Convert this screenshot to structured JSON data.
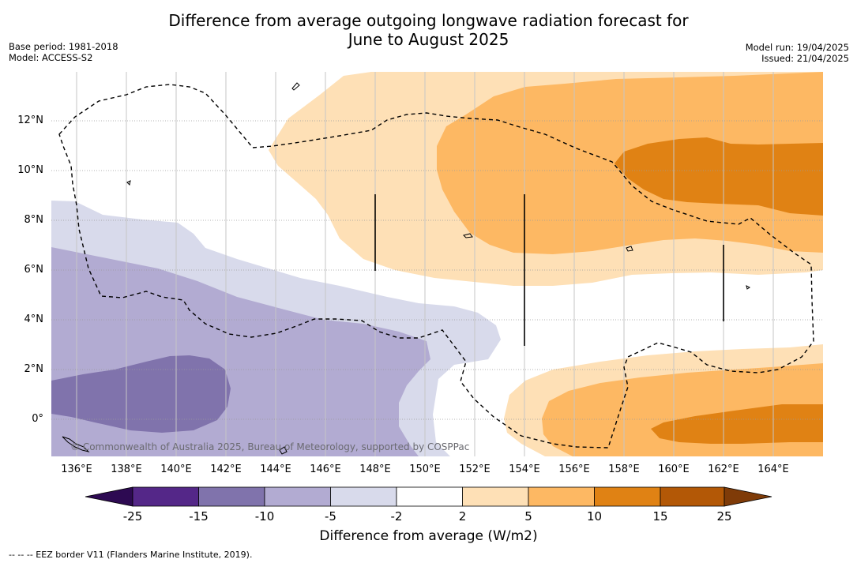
{
  "title": {
    "line1": "Difference from average outgoing longwave radiation forecast for",
    "line2": "June to August 2025"
  },
  "meta": {
    "base_period": "Base period: 1981-2018",
    "model": "Model: ACCESS-S2",
    "model_run": "Model run: 19/04/2025",
    "issued": "Issued: 21/04/2025"
  },
  "map": {
    "latitude_labels": [
      "12°N",
      "10°N",
      "8°N",
      "6°N",
      "4°N",
      "2°N",
      "0°"
    ],
    "longitude_labels": [
      "136°E",
      "138°E",
      "140°E",
      "142°E",
      "144°E",
      "146°E",
      "148°E",
      "150°E",
      "152°E",
      "154°E",
      "156°E",
      "158°E",
      "160°E",
      "162°E",
      "164°E"
    ],
    "copyright": "© Commonwealth of Australia 2025, Bureau of Meteorology, supported by COSPPac"
  },
  "colorbar": {
    "ticks": [
      "-25",
      "-15",
      "-10",
      "-5",
      "-2",
      "2",
      "5",
      "10",
      "15",
      "25"
    ],
    "colors": [
      "#2d0a52",
      "#542788",
      "#8073ac",
      "#b2abd2",
      "#d8daeb",
      "#ffffff",
      "#fee0b6",
      "#fdb863",
      "#e08214",
      "#b35806",
      "#7f3b08"
    ],
    "label": "Difference from average (W/m2)"
  },
  "footnote": "--  --  -- EEZ border V11 (Flanders Marine Institute, 2019)."
}
